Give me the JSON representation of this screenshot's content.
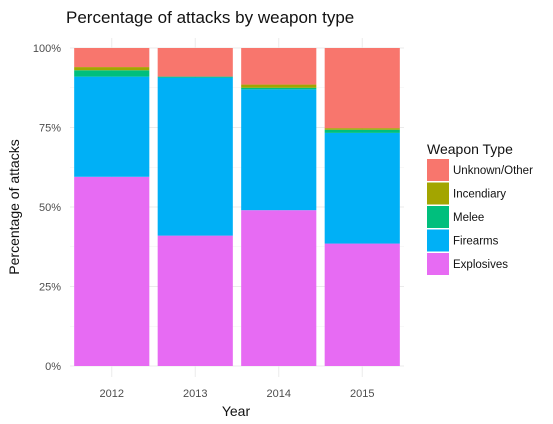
{
  "chart_data": {
    "type": "bar",
    "stacked": true,
    "title": "Percentage of attacks by weapon type",
    "xlabel": "Year",
    "ylabel": "Percentage of attacks",
    "categories": [
      "2012",
      "2013",
      "2014",
      "2015"
    ],
    "ylim": [
      0,
      100
    ],
    "y_ticks": [
      "0%",
      "25%",
      "50%",
      "75%",
      "100%"
    ],
    "y_tick_values": [
      0,
      25,
      50,
      75,
      100
    ],
    "grid": true,
    "legend": {
      "title": "Weapon Type",
      "position": "right",
      "entries": [
        "Unknown/Other",
        "Incendiary",
        "Melee",
        "Firearms",
        "Explosives"
      ]
    },
    "series": [
      {
        "name": "Explosives",
        "color": "#e76bf3",
        "values": [
          59.5,
          41.0,
          49.0,
          38.5
        ]
      },
      {
        "name": "Firearms",
        "color": "#00b0f6",
        "values": [
          31.5,
          49.7,
          38.0,
          34.8
        ]
      },
      {
        "name": "Melee",
        "color": "#00bf7d",
        "values": [
          2.0,
          0.3,
          0.5,
          1.0
        ]
      },
      {
        "name": "Incendiary",
        "color": "#a3a500",
        "values": [
          1.0,
          0.0,
          1.0,
          0.5
        ]
      },
      {
        "name": "Unknown/Other",
        "color": "#f8766d",
        "values": [
          6.0,
          9.0,
          11.5,
          25.2
        ]
      }
    ]
  }
}
